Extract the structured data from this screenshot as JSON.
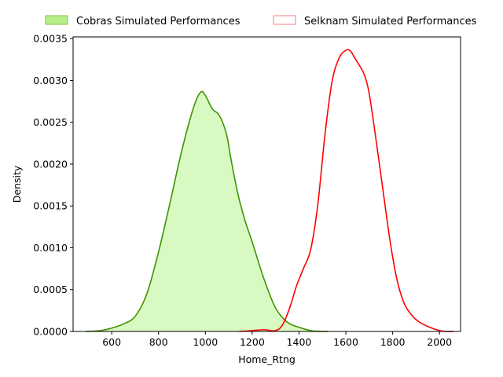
{
  "chart_data": {
    "type": "area",
    "title": "",
    "xlabel": "Home_Rtng",
    "ylabel": "Density",
    "xlim": [
      435,
      2090
    ],
    "ylim": [
      0,
      0.00352
    ],
    "x_ticks": [
      600,
      800,
      1000,
      1200,
      1400,
      1600,
      1800,
      2000
    ],
    "y_ticks": [
      0.0,
      0.0005,
      0.001,
      0.0015,
      0.002,
      0.0025,
      0.003,
      0.0035
    ],
    "y_tick_labels": [
      "0.0000",
      "0.0005",
      "0.0010",
      "0.0015",
      "0.0020",
      "0.0025",
      "0.0030",
      "0.0035"
    ],
    "grid": false,
    "legend_placement": "top, outside plot",
    "series": [
      {
        "name": "Cobras Simulated Performances",
        "line_color": "#3f9400",
        "fill_color": "#d9f9c3",
        "legend_fill_color": "#b9ef8a",
        "legend_edge_color": "#7ac943",
        "filled": true,
        "x": [
          490,
          550,
          600,
          650,
          700,
          750,
          800,
          850,
          900,
          950,
          980,
          1000,
          1030,
          1060,
          1090,
          1110,
          1140,
          1170,
          1200,
          1250,
          1300,
          1350,
          1400,
          1450,
          1500,
          1525
        ],
        "y": [
          0.0,
          1e-05,
          4e-05,
          9e-05,
          0.00018,
          0.00045,
          0.00095,
          0.00155,
          0.00217,
          0.00268,
          0.00286,
          0.00282,
          0.00266,
          0.00258,
          0.00236,
          0.00205,
          0.00163,
          0.00132,
          0.00107,
          0.00063,
          0.00028,
          0.00011,
          5e-05,
          1e-05,
          0.0,
          0.0
        ]
      },
      {
        "name": "Selknam Simulated Performances",
        "line_color": "#ff0000",
        "fill_color": "none",
        "legend_fill_color": "#ffffff",
        "legend_edge_color": "#f08080",
        "filled": false,
        "x": [
          1145,
          1200,
          1250,
          1300,
          1330,
          1360,
          1390,
          1420,
          1450,
          1480,
          1510,
          1540,
          1570,
          1600,
          1620,
          1640,
          1660,
          1680,
          1700,
          1730,
          1760,
          1790,
          1820,
          1850,
          1880,
          1910,
          1950,
          2000,
          2030,
          2060
        ],
        "y": [
          0.0,
          1e-05,
          2e-05,
          1e-05,
          8e-05,
          0.00028,
          0.00055,
          0.00076,
          0.00098,
          0.00151,
          0.00233,
          0.00297,
          0.00326,
          0.00336,
          0.00335,
          0.00326,
          0.00317,
          0.00306,
          0.00284,
          0.00227,
          0.00166,
          0.00106,
          0.0006,
          0.00033,
          0.0002,
          0.00012,
          6e-05,
          1e-05,
          0.0,
          0.0
        ]
      }
    ]
  }
}
